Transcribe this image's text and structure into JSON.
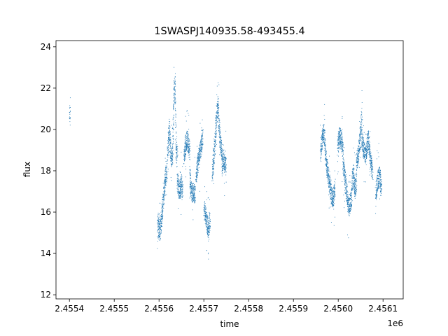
{
  "chart_data": {
    "type": "scatter",
    "title": "1SWASPJ140935.58-493455.4",
    "xlabel": "time",
    "ylabel": "flux",
    "x_offset_label": "1e6",
    "xlim": [
      2455370,
      2456145
    ],
    "ylim": [
      11.8,
      24.3
    ],
    "x_ticks": [
      2455400,
      2455500,
      2455600,
      2455700,
      2455800,
      2455900,
      2456000,
      2456100
    ],
    "x_tick_labels": [
      "2.4554",
      "2.4555",
      "2.4556",
      "2.4557",
      "2.4558",
      "2.4559",
      "2.4560",
      "2.4561"
    ],
    "y_ticks": [
      12,
      14,
      16,
      18,
      20,
      22,
      24
    ],
    "y_tick_labels": [
      "12",
      "14",
      "16",
      "18",
      "20",
      "22",
      "24"
    ],
    "grid": false,
    "legend": "none",
    "point_color": "#1f77b4",
    "segments": [
      {
        "x_start": 2455400,
        "x_end": 2455401,
        "y": [
          21.5,
          20.4,
          21.0,
          20.7
        ]
      },
      {
        "x_start": 2455596,
        "x_end": 2455601,
        "y": [
          15.2,
          15.6,
          15.0,
          15.3
        ]
      },
      {
        "x_start": 2455601,
        "x_end": 2455617,
        "y": [
          14.9,
          15.6,
          16.3,
          17.0,
          17.6,
          18.0
        ]
      },
      {
        "x_start": 2455618,
        "x_end": 2455630,
        "y": [
          18.8,
          19.4,
          20.0,
          19.0,
          18.6,
          18.9
        ]
      },
      {
        "x_start": 2455630,
        "x_end": 2455640,
        "y": [
          19.2,
          21.6,
          22.3,
          19.0,
          18.8
        ]
      },
      {
        "x_start": 2455640,
        "x_end": 2455652,
        "y": [
          17.6,
          17.2,
          17.0,
          17.4,
          17.1
        ]
      },
      {
        "x_start": 2455655,
        "x_end": 2455668,
        "y": [
          18.6,
          19.2,
          19.6,
          19.3,
          18.9
        ]
      },
      {
        "x_start": 2455668,
        "x_end": 2455680,
        "y": [
          17.8,
          17.2,
          16.9,
          17.0,
          16.8
        ]
      },
      {
        "x_start": 2455682,
        "x_end": 2455697,
        "y": [
          17.8,
          18.3,
          18.8,
          19.2,
          19.6
        ]
      },
      {
        "x_start": 2455700,
        "x_end": 2455713,
        "y": [
          16.2,
          15.8,
          15.4,
          15.2,
          15.6
        ]
      },
      {
        "x_start": 2455718,
        "x_end": 2455732,
        "y": [
          17.8,
          18.6,
          19.6,
          20.8,
          21.3
        ]
      },
      {
        "x_start": 2455732,
        "x_end": 2455740,
        "y": [
          20.6,
          19.8,
          19.2,
          18.8
        ]
      },
      {
        "x_start": 2455740,
        "x_end": 2455749,
        "y": [
          18.2,
          18.6,
          18.4,
          18.2
        ]
      },
      {
        "x_start": 2455960,
        "x_end": 2455970,
        "y": [
          18.8,
          19.5,
          19.9,
          19.4
        ]
      },
      {
        "x_start": 2455970,
        "x_end": 2455981,
        "y": [
          19.0,
          18.3,
          17.8,
          17.3
        ]
      },
      {
        "x_start": 2455981,
        "x_end": 2455992,
        "y": [
          17.2,
          16.8,
          16.6,
          17.2
        ]
      },
      {
        "x_start": 2455998,
        "x_end": 2456010,
        "y": [
          19.2,
          19.7,
          19.5,
          19.0
        ]
      },
      {
        "x_start": 2456010,
        "x_end": 2456020,
        "y": [
          18.4,
          17.8,
          17.2,
          16.8
        ]
      },
      {
        "x_start": 2456020,
        "x_end": 2456030,
        "y": [
          16.6,
          16.2,
          16.5,
          16.9
        ]
      },
      {
        "x_start": 2456030,
        "x_end": 2456040,
        "y": [
          17.4,
          17.8,
          17.1,
          17.5
        ]
      },
      {
        "x_start": 2456040,
        "x_end": 2456052,
        "y": [
          18.3,
          18.8,
          19.5,
          20.6
        ]
      },
      {
        "x_start": 2456052,
        "x_end": 2456065,
        "y": [
          19.6,
          19.0,
          18.8,
          19.4
        ]
      },
      {
        "x_start": 2456065,
        "x_end": 2456076,
        "y": [
          19.7,
          19.2,
          18.4,
          18.0
        ]
      },
      {
        "x_start": 2456083,
        "x_end": 2456096,
        "y": [
          17.0,
          17.5,
          17.8,
          17.2
        ]
      }
    ]
  }
}
